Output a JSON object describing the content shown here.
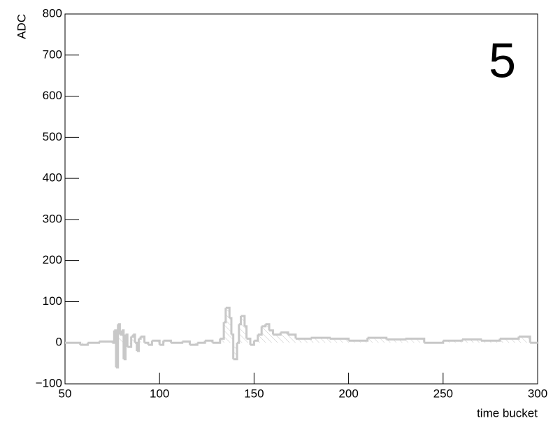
{
  "chart_data": {
    "type": "step",
    "title": "5",
    "x_label": "time bucket",
    "y_label": "ADC",
    "color": "#c8c8c8",
    "x": [
      50,
      58,
      62,
      68,
      75,
      76,
      77,
      78,
      79,
      80,
      81,
      82,
      83,
      85,
      86,
      87,
      88,
      89,
      90,
      92,
      94,
      96,
      100,
      102,
      106,
      112,
      116,
      120,
      124,
      128,
      132,
      134,
      135,
      137,
      138,
      139,
      141,
      142,
      143,
      145,
      146,
      148,
      150,
      152,
      154,
      156,
      158,
      160,
      164,
      168,
      172,
      180,
      190,
      200,
      210,
      220,
      230,
      240,
      250,
      260,
      270,
      280,
      290,
      296
    ],
    "values": [
      0,
      -5,
      0,
      3,
      0,
      30,
      -60,
      45,
      20,
      30,
      -40,
      20,
      -10,
      15,
      20,
      0,
      -20,
      10,
      15,
      0,
      -5,
      5,
      -5,
      5,
      0,
      3,
      -5,
      0,
      5,
      0,
      10,
      50,
      85,
      60,
      20,
      -40,
      0,
      45,
      65,
      40,
      10,
      -5,
      5,
      20,
      40,
      45,
      30,
      20,
      25,
      20,
      10,
      12,
      10,
      5,
      12,
      8,
      10,
      0,
      5,
      8,
      5,
      10,
      15,
      0
    ],
    "xlim": [
      50,
      300
    ],
    "ylim": [
      -100,
      800
    ],
    "xticks": [
      50,
      100,
      150,
      200,
      250,
      300
    ],
    "yticks": [
      {
        "value": -100,
        "label": "−100"
      },
      0,
      100,
      200,
      300,
      400,
      500,
      600,
      700,
      800
    ]
  }
}
